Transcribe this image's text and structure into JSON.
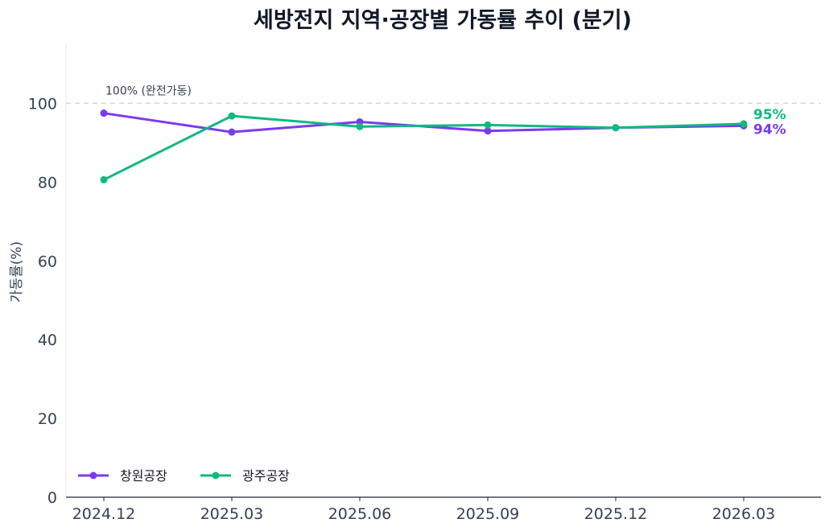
{
  "chart_data": {
    "type": "line",
    "title": "세방전지 지역·공장별 가동률 추이 (분기)",
    "ylabel": "가동률(%)",
    "xlabel": "",
    "ylim": [
      0,
      115
    ],
    "yticks": [
      0,
      20,
      40,
      60,
      80,
      100
    ],
    "categories": [
      "2024.12",
      "2025.03",
      "2025.06",
      "2025.09",
      "2025.12",
      "2026.03"
    ],
    "series": [
      {
        "name": "창원공장",
        "color": "#7c3aed",
        "values": [
          97.5,
          92.7,
          95.3,
          93.0,
          93.8,
          94.3
        ],
        "end_label": "94%"
      },
      {
        "name": "광주공장",
        "color": "#10b981",
        "values": [
          80.6,
          96.8,
          94.1,
          94.5,
          93.8,
          94.8
        ],
        "end_label": "95%"
      }
    ],
    "reference_line": {
      "value": 100,
      "label": "100% (완전가동)",
      "color": "#d1d5db"
    },
    "legend": "bottom-left",
    "grid": false
  }
}
